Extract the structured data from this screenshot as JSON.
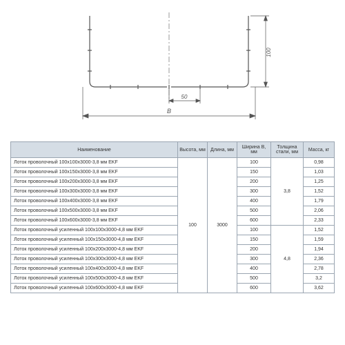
{
  "diagram": {
    "stroke_color": "#555555",
    "stroke_width": 1.2,
    "dim_stroke": "#555555",
    "dim_text_color": "#555555",
    "label_B": "B",
    "label_50": "50",
    "label_100": "100",
    "font_size": 9
  },
  "table": {
    "header_bg": "#d5dde5",
    "border_color": "#9aa5b1",
    "text_color": "#333333",
    "font_size": 7,
    "columns": [
      "Наименование",
      "Высота, мм",
      "Длина, мм",
      "Ширина B, мм",
      "Толщина стали, мм",
      "Масса, кг"
    ],
    "shared": {
      "height": "100",
      "length": "3000",
      "thickness_1": "3,8",
      "thickness_2": "4,8"
    },
    "rows_group1": [
      {
        "name": "Лоток проволочный 100x100x3000-3,8 мм EKF",
        "width": "100",
        "mass": "0,98"
      },
      {
        "name": "Лоток проволочный 100x150x3000-3,8 мм EKF",
        "width": "150",
        "mass": "1,03"
      },
      {
        "name": "Лоток проволочный 100x200x3000-3,8 мм EKF",
        "width": "200",
        "mass": "1,25"
      },
      {
        "name": "Лоток проволочный 100x300x3000-3,8 мм EKF",
        "width": "300",
        "mass": "1,52"
      },
      {
        "name": "Лоток проволочный 100x400x3000-3,8 мм EKF",
        "width": "400",
        "mass": "1,79"
      },
      {
        "name": "Лоток проволочный 100x500x3000-3,8 мм EKF",
        "width": "500",
        "mass": "2,06"
      },
      {
        "name": "Лоток проволочный 100x600x3000-3,8 мм EKF",
        "width": "600",
        "mass": "2,33"
      }
    ],
    "rows_group2": [
      {
        "name": "Лоток проволочный усиленный 100x100x3000-4,8 мм EKF",
        "width": "100",
        "mass": "1,52"
      },
      {
        "name": "Лоток проволочный усиленный 100x150x3000-4,8 мм EKF",
        "width": "150",
        "mass": "1,59"
      },
      {
        "name": "Лоток проволочный усиленный 100x200x3000-4,8 мм EKF",
        "width": "200",
        "mass": "1,94"
      },
      {
        "name": "Лоток проволочный усиленный 100x300x3000-4,8 мм EKF",
        "width": "300",
        "mass": "2,36"
      },
      {
        "name": "Лоток проволочный усиленный 100x400x3000-4,8 мм EKF",
        "width": "400",
        "mass": "2,78"
      },
      {
        "name": "Лоток проволочный усиленный 100x500x3000-4,8 мм EKF",
        "width": "500",
        "mass": "3,2"
      },
      {
        "name": "Лоток проволочный усиленный 100x600x3000-4,8 мм EKF",
        "width": "600",
        "mass": "3,62"
      }
    ]
  }
}
